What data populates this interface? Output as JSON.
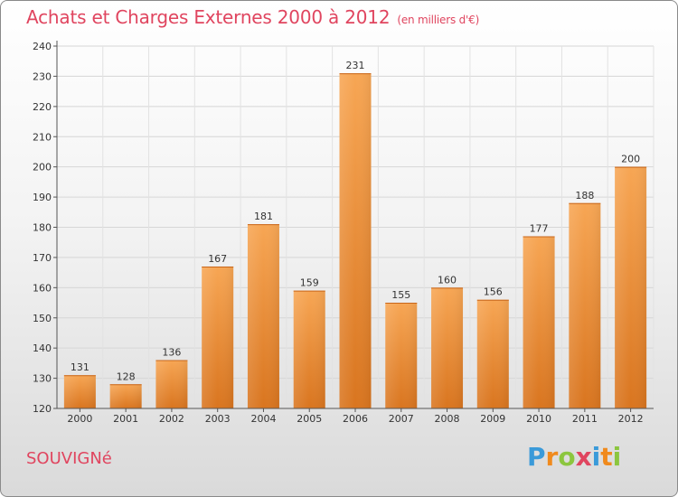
{
  "header": {
    "title": "Achats et Charges Externes 2000 à 2012",
    "subtitle": "(en milliers d'€)"
  },
  "footer": {
    "commune": "SOUVIGNé",
    "logo": [
      "P",
      "r",
      "o",
      "x",
      "i",
      "t",
      "i"
    ]
  },
  "colors": {
    "title": "#e0455f",
    "bar_top": "#f7a654",
    "bar_bottom": "#d9751f",
    "logo": [
      "#3a9ad9",
      "#f08a1d",
      "#8cc63f",
      "#e0455f",
      "#3a9ad9",
      "#f08a1d",
      "#8cc63f"
    ]
  },
  "chart_data": {
    "type": "bar",
    "title": "Achats et Charges Externes 2000 à 2012",
    "xlabel": "",
    "ylabel": "",
    "categories": [
      "2000",
      "2001",
      "2002",
      "2003",
      "2004",
      "2005",
      "2006",
      "2007",
      "2008",
      "2009",
      "2010",
      "2011",
      "2012"
    ],
    "values": [
      131,
      128,
      136,
      167,
      181,
      159,
      231,
      155,
      160,
      156,
      177,
      188,
      200
    ],
    "ylim": [
      120,
      240
    ],
    "yticks": [
      120,
      130,
      140,
      150,
      160,
      170,
      180,
      190,
      200,
      210,
      220,
      230,
      240
    ],
    "grid": true,
    "legend": "none"
  }
}
